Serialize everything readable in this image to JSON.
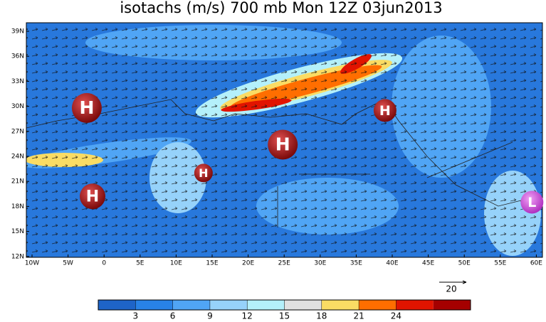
{
  "map": {
    "title": "isotachs (m/s) 700 mb Mon 12Z 03jun2013",
    "lat_labels": [
      "39N",
      "36N",
      "33N",
      "30N",
      "27N",
      "24N",
      "21N",
      "18N",
      "15N",
      "12N"
    ],
    "lon_labels": [
      "10W",
      "5W",
      "0",
      "5E",
      "10E",
      "15E",
      "20E",
      "25E",
      "30E",
      "35E",
      "40E",
      "45E",
      "50E",
      "55E",
      "60E"
    ],
    "centers": [
      {
        "label": "H",
        "lon": -2.4,
        "lat": 29.8
      },
      {
        "label": "H",
        "lon": 24.8,
        "lat": 25.4
      },
      {
        "label": "H",
        "lon": 13.8,
        "lat": 22.0
      },
      {
        "label": "H",
        "lon": -1.6,
        "lat": 19.2
      },
      {
        "label": "H",
        "lon": 39.0,
        "lat": 29.5
      },
      {
        "label": "L",
        "lon": 59.4,
        "lat": 18.5
      }
    ],
    "vector_reference": 20,
    "colorbar": {
      "ticks": [
        3,
        6,
        9,
        12,
        15,
        18,
        21,
        24
      ],
      "colors": [
        "#1e64c8",
        "#2882e6",
        "#50a5f5",
        "#96d2fa",
        "#b4f0fa",
        "#e1e1e1",
        "#fadc64",
        "#ff6e00",
        "#e11400",
        "#a50000"
      ]
    }
  }
}
